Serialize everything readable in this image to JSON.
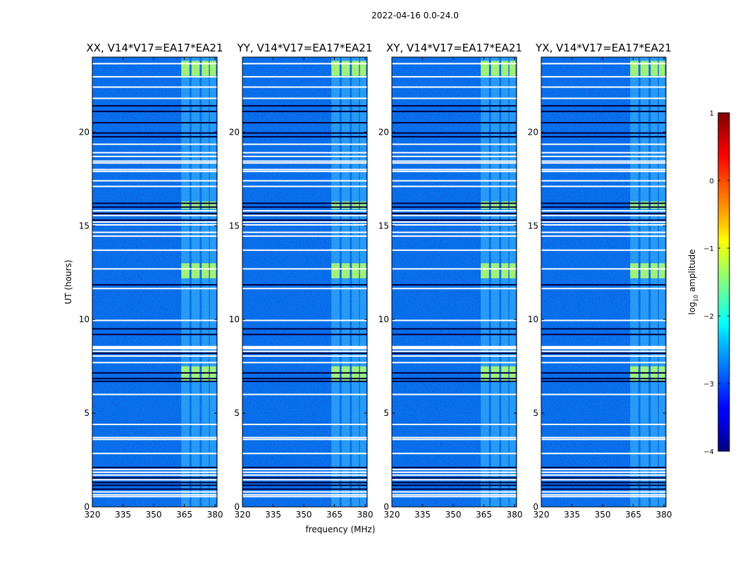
{
  "figure_title": "2022-04-16 0.0-24.0",
  "chart_data": {
    "type": "heatmap",
    "title": "2022-04-16 0.0-24.0",
    "xlabel": "frequency (MHz)",
    "ylabel": "UT (hours)",
    "xlim": [
      320,
      381
    ],
    "ylim": [
      0,
      24
    ],
    "xticks": [
      320,
      335,
      350,
      365,
      380
    ],
    "yticks": [
      0,
      5,
      10,
      15,
      20
    ],
    "panels": [
      {
        "title": "XX, V14*V17=EA17*EA21"
      },
      {
        "title": "YY, V14*V17=EA17*EA21"
      },
      {
        "title": "XY, V14*V17=EA17*EA21"
      },
      {
        "title": "YX, V14*V17=EA17*EA21"
      }
    ],
    "colorbar": {
      "label": "log10 amplitude",
      "label_base": "log",
      "label_sub": "10",
      "label_rest": " amplitude",
      "min": -4,
      "max": 1,
      "ticks": [
        -4,
        -3,
        -2,
        -1,
        0,
        1
      ],
      "colormap": "jet"
    },
    "rfi_band_mhz": [
      363,
      381
    ],
    "rfi_subbands_mhz": [
      [
        363.5,
        367.5
      ],
      [
        368.5,
        372.5
      ],
      [
        373.5,
        377
      ],
      [
        377.5,
        380.5
      ]
    ],
    "bright_intervals_ut": [
      [
        6.7,
        7.5
      ],
      [
        12.2,
        13.0
      ],
      [
        15.9,
        16.3
      ],
      [
        23.0,
        23.8
      ]
    ],
    "flagged_ut_white": [
      0.55,
      0.65,
      0.8,
      1.45,
      1.7,
      1.85,
      2.0,
      2.85,
      3.6,
      3.7,
      4.4,
      6.0,
      7.7,
      8.05,
      8.3,
      8.45,
      8.5,
      8.55,
      9.95,
      11.65,
      12.7,
      13.7,
      14.45,
      14.65,
      15.05,
      15.2,
      15.55,
      15.8,
      17.1,
      17.4,
      17.9,
      18.0,
      18.35,
      18.45,
      18.7,
      18.9,
      19.35,
      21.8,
      22.4,
      22.95,
      23.65
    ],
    "flagged_ut_dark": [
      0.95,
      1.15,
      1.3,
      1.55,
      2.1,
      6.7,
      6.85,
      7.15,
      8.2,
      9.2,
      9.5,
      11.85,
      15.3,
      15.65,
      16.0,
      16.2,
      19.75,
      19.95,
      20.5,
      21.1,
      21.4
    ]
  }
}
